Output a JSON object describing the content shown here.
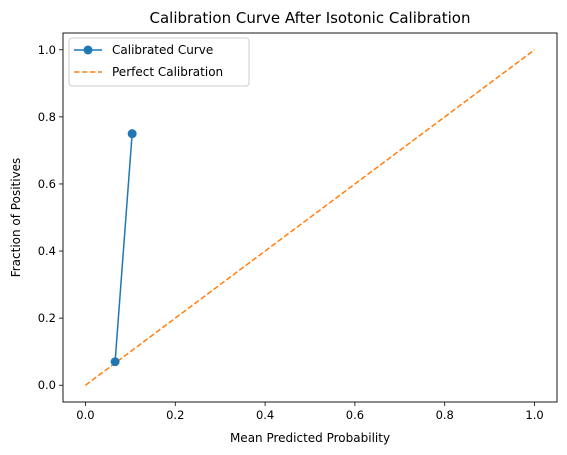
{
  "chart_data": {
    "type": "line",
    "title": "Calibration Curve After Isotonic Calibration",
    "xlabel": "Mean Predicted Probability",
    "ylabel": "Fraction of Positives",
    "xlim": [
      -0.05,
      1.05
    ],
    "ylim": [
      -0.05,
      1.05
    ],
    "xticks": [
      "0.0",
      "0.2",
      "0.4",
      "0.6",
      "0.8",
      "1.0"
    ],
    "yticks": [
      "0.0",
      "0.2",
      "0.4",
      "0.6",
      "0.8",
      "1.0"
    ],
    "grid": false,
    "legend_position": "top-left",
    "series": [
      {
        "name": "Calibrated Curve",
        "color": "#1f77b4",
        "style": "solid",
        "marker": "circle",
        "x": [
          0.066,
          0.104
        ],
        "y": [
          0.07,
          0.75
        ]
      },
      {
        "name": "Perfect Calibration",
        "color": "#ff7f0e",
        "style": "dashed",
        "marker": "none",
        "x": [
          0.0,
          1.0
        ],
        "y": [
          0.0,
          1.0
        ]
      }
    ]
  }
}
